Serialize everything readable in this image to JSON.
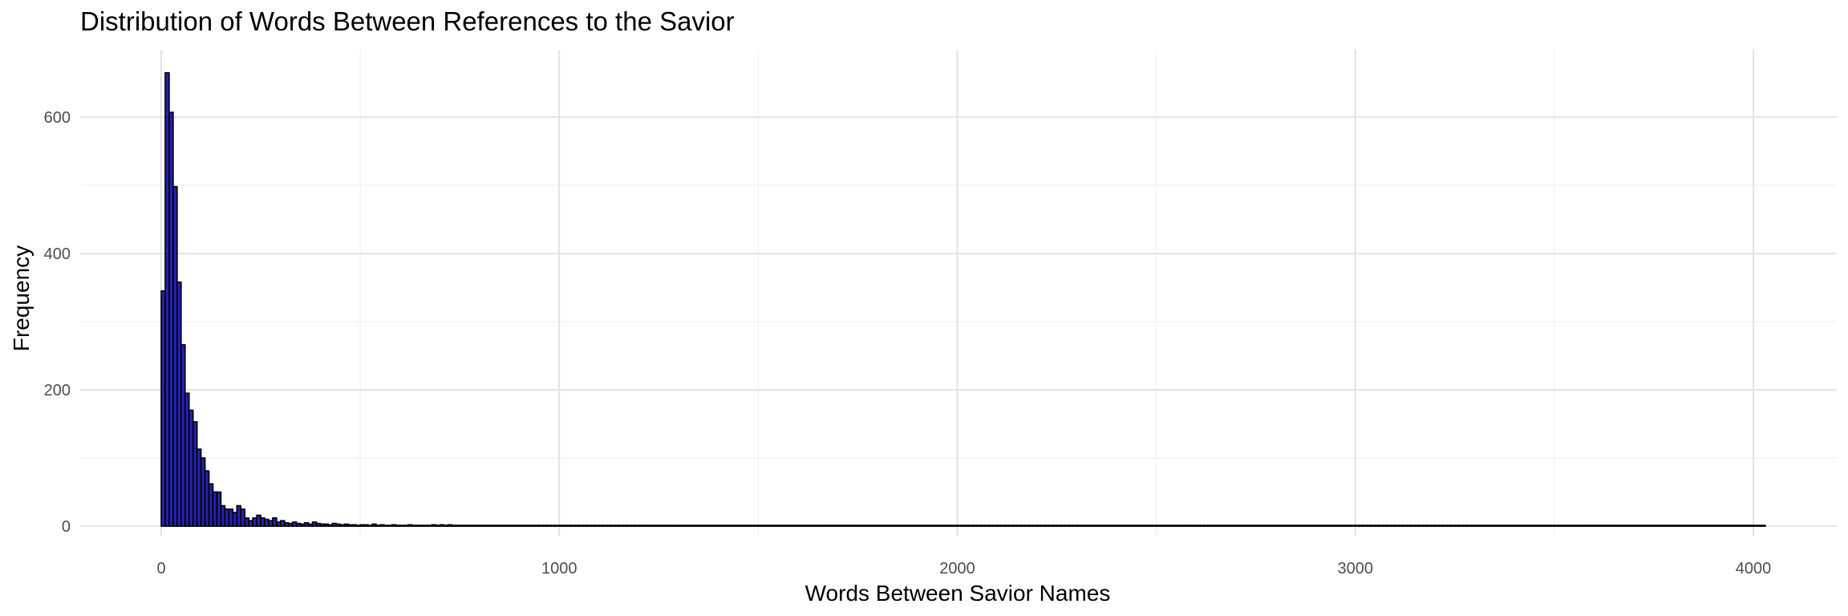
{
  "chart_data": {
    "type": "bar",
    "title": "Distribution of Words Between References to the Savior",
    "xlabel": "Words Between Savior Names",
    "ylabel": "Frequency",
    "xlim": [
      -200,
      4200
    ],
    "ylim": [
      0,
      700
    ],
    "x_ticks": [
      0,
      1000,
      2000,
      3000,
      4000
    ],
    "y_ticks": [
      0,
      200,
      400,
      600
    ],
    "x_minor_ticks": [
      500,
      1500,
      2500,
      3500
    ],
    "y_minor_ticks": [
      100,
      300,
      500
    ],
    "grid": true,
    "bin_width": 10,
    "fill_color": "#2222aa",
    "edge_color": "#000000",
    "bins": [
      {
        "x": 0,
        "count": 345
      },
      {
        "x": 10,
        "count": 665
      },
      {
        "x": 20,
        "count": 607
      },
      {
        "x": 30,
        "count": 498
      },
      {
        "x": 40,
        "count": 358
      },
      {
        "x": 50,
        "count": 266
      },
      {
        "x": 60,
        "count": 195
      },
      {
        "x": 70,
        "count": 170
      },
      {
        "x": 80,
        "count": 153
      },
      {
        "x": 90,
        "count": 113
      },
      {
        "x": 100,
        "count": 100
      },
      {
        "x": 110,
        "count": 81
      },
      {
        "x": 120,
        "count": 62
      },
      {
        "x": 130,
        "count": 50
      },
      {
        "x": 140,
        "count": 50
      },
      {
        "x": 150,
        "count": 30
      },
      {
        "x": 160,
        "count": 25
      },
      {
        "x": 170,
        "count": 25
      },
      {
        "x": 180,
        "count": 20
      },
      {
        "x": 190,
        "count": 30
      },
      {
        "x": 200,
        "count": 25
      },
      {
        "x": 210,
        "count": 12
      },
      {
        "x": 220,
        "count": 8
      },
      {
        "x": 230,
        "count": 12
      },
      {
        "x": 240,
        "count": 16
      },
      {
        "x": 250,
        "count": 12
      },
      {
        "x": 260,
        "count": 10
      },
      {
        "x": 270,
        "count": 8
      },
      {
        "x": 280,
        "count": 12
      },
      {
        "x": 290,
        "count": 6
      },
      {
        "x": 300,
        "count": 8
      },
      {
        "x": 310,
        "count": 5
      },
      {
        "x": 320,
        "count": 4
      },
      {
        "x": 330,
        "count": 6
      },
      {
        "x": 340,
        "count": 4
      },
      {
        "x": 350,
        "count": 3
      },
      {
        "x": 360,
        "count": 5
      },
      {
        "x": 370,
        "count": 3
      },
      {
        "x": 380,
        "count": 6
      },
      {
        "x": 390,
        "count": 4
      },
      {
        "x": 400,
        "count": 3
      },
      {
        "x": 410,
        "count": 3
      },
      {
        "x": 420,
        "count": 2
      },
      {
        "x": 430,
        "count": 4
      },
      {
        "x": 440,
        "count": 3
      },
      {
        "x": 450,
        "count": 2
      },
      {
        "x": 460,
        "count": 3
      },
      {
        "x": 470,
        "count": 2
      },
      {
        "x": 480,
        "count": 2
      },
      {
        "x": 490,
        "count": 1
      },
      {
        "x": 500,
        "count": 2
      },
      {
        "x": 510,
        "count": 2
      },
      {
        "x": 520,
        "count": 1
      },
      {
        "x": 530,
        "count": 3
      },
      {
        "x": 540,
        "count": 1
      },
      {
        "x": 550,
        "count": 2
      },
      {
        "x": 560,
        "count": 1
      },
      {
        "x": 570,
        "count": 1
      },
      {
        "x": 580,
        "count": 2
      },
      {
        "x": 590,
        "count": 1
      },
      {
        "x": 600,
        "count": 1
      },
      {
        "x": 610,
        "count": 1
      },
      {
        "x": 620,
        "count": 2
      },
      {
        "x": 640,
        "count": 1
      },
      {
        "x": 660,
        "count": 1
      },
      {
        "x": 680,
        "count": 2
      },
      {
        "x": 690,
        "count": 1
      },
      {
        "x": 700,
        "count": 2
      },
      {
        "x": 710,
        "count": 1
      },
      {
        "x": 720,
        "count": 2
      },
      {
        "x": 740,
        "count": 1
      },
      {
        "x": 760,
        "count": 1
      },
      {
        "x": 790,
        "count": 1
      },
      {
        "x": 850,
        "count": 1
      },
      {
        "x": 880,
        "count": 1
      },
      {
        "x": 900,
        "count": 1
      },
      {
        "x": 930,
        "count": 1
      },
      {
        "x": 960,
        "count": 1
      },
      {
        "x": 1020,
        "count": 1
      },
      {
        "x": 1110,
        "count": 1
      },
      {
        "x": 1160,
        "count": 1
      },
      {
        "x": 1200,
        "count": 1
      },
      {
        "x": 1470,
        "count": 1
      },
      {
        "x": 1530,
        "count": 1
      },
      {
        "x": 1690,
        "count": 1
      },
      {
        "x": 1730,
        "count": 1
      },
      {
        "x": 2400,
        "count": 1
      },
      {
        "x": 4020,
        "count": 1
      }
    ]
  }
}
